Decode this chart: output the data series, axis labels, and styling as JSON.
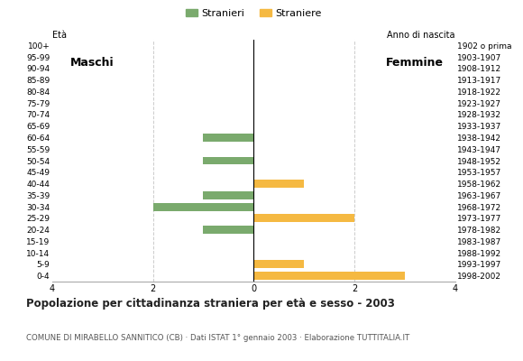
{
  "age_groups": [
    "100+",
    "95-99",
    "90-94",
    "85-89",
    "80-84",
    "75-79",
    "70-74",
    "65-69",
    "60-64",
    "55-59",
    "50-54",
    "45-49",
    "40-44",
    "35-39",
    "30-34",
    "25-29",
    "20-24",
    "15-19",
    "10-14",
    "5-9",
    "0-4"
  ],
  "birth_years": [
    "1902 o prima",
    "1903-1907",
    "1908-1912",
    "1913-1917",
    "1918-1922",
    "1923-1927",
    "1928-1932",
    "1933-1937",
    "1938-1942",
    "1943-1947",
    "1948-1952",
    "1953-1957",
    "1958-1962",
    "1963-1967",
    "1968-1972",
    "1973-1977",
    "1978-1982",
    "1983-1987",
    "1988-1992",
    "1993-1997",
    "1998-2002"
  ],
  "maschi": [
    0,
    0,
    0,
    0,
    0,
    0,
    0,
    0,
    1,
    0,
    1,
    0,
    0,
    1,
    2,
    0,
    1,
    0,
    0,
    0,
    0
  ],
  "femmine": [
    0,
    0,
    0,
    0,
    0,
    0,
    0,
    0,
    0,
    0,
    0,
    0,
    1,
    0,
    0,
    2,
    0,
    0,
    0,
    1,
    3
  ],
  "color_maschi": "#7aaa6d",
  "color_femmine": "#f5b942",
  "title": "Popolazione per cittadinanza straniera per età e sesso - 2003",
  "subtitle": "COMUNE DI MIRABELLO SANNITICO (CB) · Dati ISTAT 1° gennaio 2003 · Elaborazione TUTTITALIA.IT",
  "legend_maschi": "Stranieri",
  "legend_femmine": "Straniere",
  "xlim": 4,
  "background_color": "#ffffff",
  "bar_height": 0.7,
  "grid_color": "#cccccc",
  "spine_color": "#aaaaaa"
}
